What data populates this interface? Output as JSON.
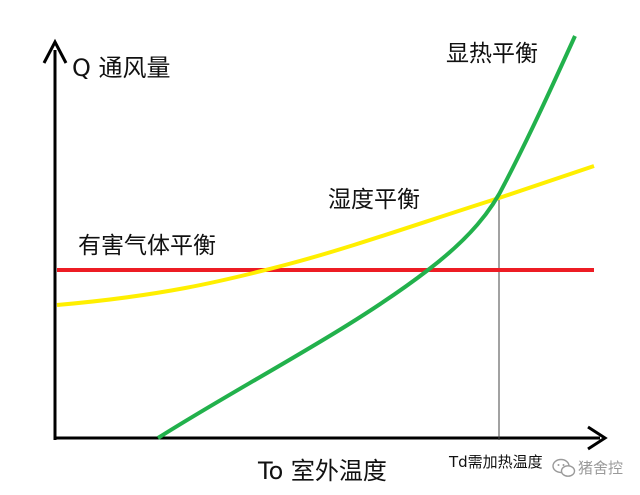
{
  "diagram": {
    "y_axis_label": "Q 通风量",
    "x_axis_label": "To 室外温度",
    "x_marker_label": "Td需加热温度",
    "curves": {
      "sensible_heat": {
        "label": "显热平衡",
        "color": "#22b14c"
      },
      "humidity": {
        "label": "湿度平衡",
        "color": "#ffef00"
      },
      "harmful_gas": {
        "label": "有害气体平衡",
        "color": "#ed1c24"
      }
    },
    "axis_color": "#000000",
    "watermark": {
      "text": "猪舍控",
      "icon": "wechat-icon"
    }
  }
}
